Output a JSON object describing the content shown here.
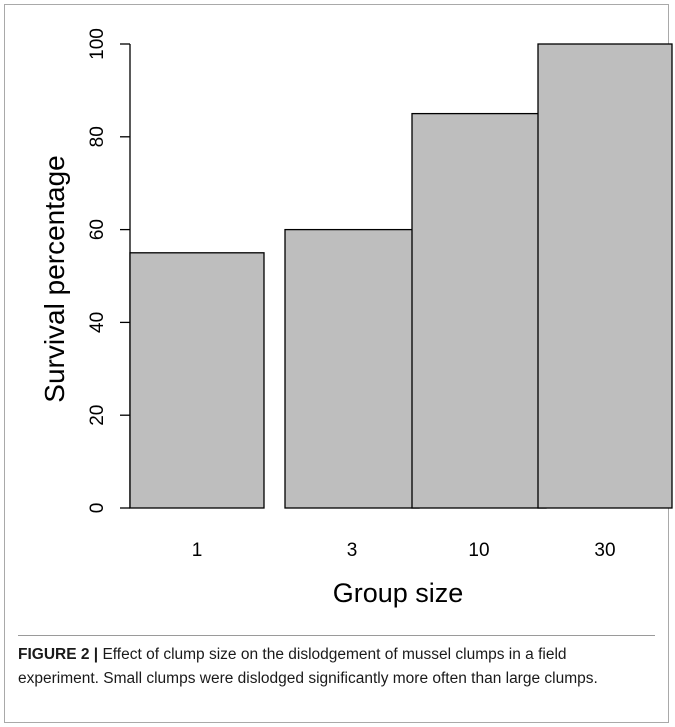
{
  "chart_data": {
    "type": "bar",
    "title": "",
    "xlabel": "Group size",
    "ylabel": "Survival percentage",
    "categories": [
      "1",
      "3",
      "10",
      "30"
    ],
    "values": [
      55,
      60,
      85,
      100
    ],
    "ylim": [
      0,
      100
    ],
    "yticks": [
      0,
      20,
      40,
      60,
      80,
      100
    ],
    "grid": false,
    "bar_color": "#bebebe",
    "bar_edge_color": "#000000"
  },
  "caption": {
    "label": "FIGURE 2",
    "separator": "|",
    "text": " Effect of clump size on the dislodgement of mussel clumps in a field experiment. Small clumps were dislodged significantly more often than large clumps."
  }
}
